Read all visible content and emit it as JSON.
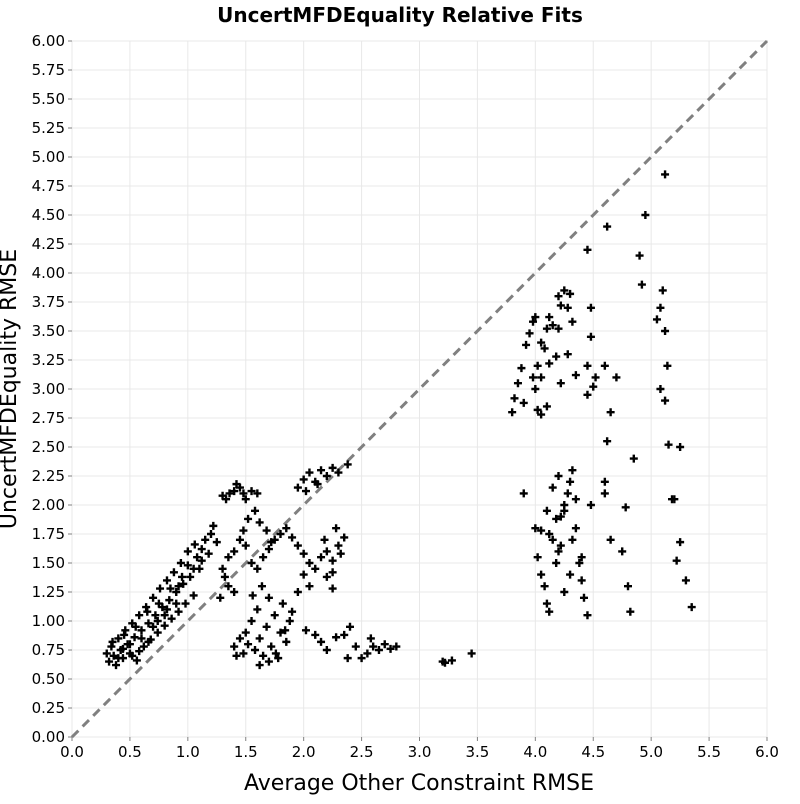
{
  "chart_data": {
    "type": "scatter",
    "title": "UncertMFDEquality Relative Fits",
    "xlabel": "Average Other Constraint RMSE",
    "ylabel": "UncertMFDEquality RMSE",
    "xlim": [
      0,
      6
    ],
    "ylim": [
      0,
      6
    ],
    "x_ticks": [
      "0.0",
      "0.5",
      "1.0",
      "1.5",
      "2.0",
      "2.5",
      "3.0",
      "3.5",
      "4.0",
      "4.5",
      "5.0",
      "5.5",
      "6.0"
    ],
    "y_ticks": [
      "0.00",
      "0.25",
      "0.50",
      "0.75",
      "1.00",
      "1.25",
      "1.50",
      "1.75",
      "2.00",
      "2.25",
      "2.50",
      "2.75",
      "3.00",
      "3.25",
      "3.50",
      "3.75",
      "4.00",
      "4.25",
      "4.50",
      "4.75",
      "5.00",
      "5.25",
      "5.50",
      "5.75",
      "6.00"
    ],
    "grid": true,
    "reference_line": {
      "style": "dashed",
      "color": "#808080",
      "from": [
        0,
        0
      ],
      "to": [
        6,
        6
      ]
    },
    "marker": {
      "shape": "plus",
      "color": "#000000"
    },
    "series": [
      {
        "points": [
          [
            0.3,
            0.72
          ],
          [
            0.32,
            0.65
          ],
          [
            0.34,
            0.78
          ],
          [
            0.36,
            0.7
          ],
          [
            0.38,
            0.62
          ],
          [
            0.4,
            0.85
          ],
          [
            0.42,
            0.75
          ],
          [
            0.44,
            0.68
          ],
          [
            0.46,
            0.92
          ],
          [
            0.48,
            0.8
          ],
          [
            0.5,
            0.72
          ],
          [
            0.52,
            0.98
          ],
          [
            0.54,
            0.86
          ],
          [
            0.56,
            0.66
          ],
          [
            0.58,
            1.05
          ],
          [
            0.6,
            0.92
          ],
          [
            0.62,
            0.78
          ],
          [
            0.64,
            1.12
          ],
          [
            0.66,
            0.98
          ],
          [
            0.68,
            0.84
          ],
          [
            0.7,
            1.2
          ],
          [
            0.72,
            1.05
          ],
          [
            0.74,
            0.9
          ],
          [
            0.76,
            1.28
          ],
          [
            0.78,
            1.12
          ],
          [
            0.8,
            0.96
          ],
          [
            0.82,
            1.35
          ],
          [
            0.84,
            1.18
          ],
          [
            0.86,
            1.02
          ],
          [
            0.88,
            1.42
          ],
          [
            0.9,
            1.25
          ],
          [
            0.92,
            1.08
          ],
          [
            0.94,
            1.5
          ],
          [
            0.96,
            1.32
          ],
          [
            0.98,
            1.15
          ],
          [
            1.0,
            1.48
          ],
          [
            1.02,
            1.38
          ],
          [
            1.05,
            1.22
          ],
          [
            1.08,
            1.55
          ],
          [
            1.1,
            1.45
          ],
          [
            1.12,
            1.62
          ],
          [
            1.15,
            1.7
          ],
          [
            1.18,
            1.58
          ],
          [
            1.2,
            1.75
          ],
          [
            1.22,
            1.82
          ],
          [
            1.25,
            1.68
          ],
          [
            0.35,
            0.82
          ],
          [
            0.45,
            0.88
          ],
          [
            0.55,
            0.95
          ],
          [
            0.65,
            1.08
          ],
          [
            0.75,
            1.15
          ],
          [
            0.85,
            1.28
          ],
          [
            0.95,
            1.38
          ],
          [
            1.05,
            1.45
          ],
          [
            0.4,
            0.68
          ],
          [
            0.5,
            0.8
          ],
          [
            0.6,
            0.85
          ],
          [
            0.7,
            0.95
          ],
          [
            0.8,
            1.05
          ],
          [
            0.9,
            1.15
          ],
          [
            0.58,
            0.74
          ],
          [
            0.66,
            0.82
          ],
          [
            0.74,
            1.0
          ],
          [
            0.82,
            1.1
          ],
          [
            0.92,
            1.3
          ],
          [
            1.0,
            1.6
          ],
          [
            1.06,
            1.66
          ],
          [
            1.12,
            1.52
          ],
          [
            0.44,
            0.76
          ],
          [
            0.52,
            0.7
          ],
          [
            1.3,
            2.08
          ],
          [
            1.33,
            2.05
          ],
          [
            1.36,
            2.1
          ],
          [
            1.4,
            2.12
          ],
          [
            1.42,
            2.18
          ],
          [
            1.45,
            2.15
          ],
          [
            1.48,
            2.1
          ],
          [
            1.5,
            2.05
          ],
          [
            1.55,
            2.12
          ],
          [
            1.6,
            2.1
          ],
          [
            1.3,
            1.45
          ],
          [
            1.35,
            1.55
          ],
          [
            1.4,
            1.6
          ],
          [
            1.45,
            1.7
          ],
          [
            1.5,
            1.65
          ],
          [
            1.55,
            1.5
          ],
          [
            1.6,
            1.45
          ],
          [
            1.65,
            1.55
          ],
          [
            1.7,
            1.62
          ],
          [
            1.75,
            1.7
          ],
          [
            1.8,
            1.75
          ],
          [
            1.85,
            1.8
          ],
          [
            1.9,
            1.72
          ],
          [
            1.95,
            1.65
          ],
          [
            2.0,
            1.58
          ],
          [
            2.05,
            1.5
          ],
          [
            2.1,
            1.45
          ],
          [
            2.15,
            1.55
          ],
          [
            2.2,
            1.6
          ],
          [
            2.25,
            1.52
          ],
          [
            1.35,
            1.3
          ],
          [
            1.4,
            1.25
          ],
          [
            1.28,
            1.2
          ],
          [
            1.32,
            1.38
          ],
          [
            1.48,
            1.78
          ],
          [
            1.52,
            1.88
          ],
          [
            1.58,
            1.95
          ],
          [
            1.62,
            1.85
          ],
          [
            1.68,
            1.78
          ],
          [
            1.72,
            1.68
          ],
          [
            1.5,
            0.9
          ],
          [
            1.52,
            0.8
          ],
          [
            1.55,
            1.0
          ],
          [
            1.58,
            0.75
          ],
          [
            1.6,
            1.1
          ],
          [
            1.62,
            0.85
          ],
          [
            1.65,
            0.7
          ],
          [
            1.68,
            0.95
          ],
          [
            1.7,
            1.2
          ],
          [
            1.72,
            0.78
          ],
          [
            1.75,
            1.05
          ],
          [
            1.78,
            0.68
          ],
          [
            1.8,
            0.9
          ],
          [
            1.82,
            1.15
          ],
          [
            1.85,
            0.82
          ],
          [
            1.88,
            1.0
          ],
          [
            1.4,
            0.78
          ],
          [
            1.42,
            0.7
          ],
          [
            1.45,
            0.85
          ],
          [
            1.48,
            0.72
          ],
          [
            1.62,
            0.62
          ],
          [
            1.7,
            0.65
          ],
          [
            1.76,
            0.72
          ],
          [
            1.84,
            0.92
          ],
          [
            1.9,
            1.08
          ],
          [
            1.95,
            1.25
          ],
          [
            2.0,
            1.4
          ],
          [
            2.05,
            1.3
          ],
          [
            1.56,
            1.22
          ],
          [
            1.64,
            1.3
          ],
          [
            1.95,
            2.15
          ],
          [
            2.0,
            2.22
          ],
          [
            2.05,
            2.28
          ],
          [
            2.1,
            2.2
          ],
          [
            2.15,
            2.3
          ],
          [
            2.2,
            2.25
          ],
          [
            2.25,
            2.32
          ],
          [
            2.3,
            2.28
          ],
          [
            2.02,
            2.12
          ],
          [
            2.12,
            2.18
          ],
          [
            2.2,
            1.38
          ],
          [
            2.25,
            1.42
          ],
          [
            2.3,
            1.65
          ],
          [
            2.35,
            1.72
          ],
          [
            2.4,
            0.95
          ],
          [
            2.25,
            1.28
          ],
          [
            2.18,
            1.7
          ],
          [
            2.28,
            1.8
          ],
          [
            2.38,
            2.35
          ],
          [
            2.32,
            1.58
          ],
          [
            2.45,
            0.78
          ],
          [
            2.5,
            0.68
          ],
          [
            2.55,
            0.72
          ],
          [
            2.6,
            0.78
          ],
          [
            2.65,
            0.75
          ],
          [
            2.7,
            0.8
          ],
          [
            2.75,
            0.76
          ],
          [
            2.8,
            0.78
          ],
          [
            2.35,
            0.88
          ],
          [
            2.58,
            0.85
          ],
          [
            2.1,
            0.88
          ],
          [
            2.15,
            0.82
          ],
          [
            2.2,
            0.75
          ],
          [
            2.28,
            0.86
          ],
          [
            2.02,
            0.92
          ],
          [
            3.2,
            0.65
          ],
          [
            3.22,
            0.64
          ],
          [
            3.28,
            0.66
          ],
          [
            3.45,
            0.72
          ],
          [
            2.38,
            0.68
          ],
          [
            3.8,
            2.8
          ],
          [
            3.82,
            2.92
          ],
          [
            3.85,
            3.05
          ],
          [
            3.88,
            3.18
          ],
          [
            3.9,
            2.88
          ],
          [
            3.92,
            3.38
          ],
          [
            3.95,
            3.48
          ],
          [
            3.98,
            3.58
          ],
          [
            4.0,
            3.62
          ],
          [
            4.02,
            3.2
          ],
          [
            4.05,
            3.1
          ],
          [
            4.08,
            3.35
          ],
          [
            4.1,
            3.52
          ],
          [
            4.12,
            3.62
          ],
          [
            4.15,
            3.55
          ],
          [
            4.18,
            3.28
          ],
          [
            4.2,
            3.8
          ],
          [
            4.22,
            3.72
          ],
          [
            4.25,
            3.85
          ],
          [
            4.28,
            3.7
          ],
          [
            4.3,
            3.82
          ],
          [
            4.32,
            3.58
          ],
          [
            4.0,
            3.0
          ],
          [
            4.02,
            2.82
          ],
          [
            4.05,
            2.78
          ],
          [
            4.1,
            2.85
          ],
          [
            3.98,
            3.1
          ],
          [
            4.05,
            3.4
          ],
          [
            4.12,
            3.22
          ],
          [
            4.22,
            3.05
          ],
          [
            4.35,
            3.12
          ],
          [
            4.45,
            3.2
          ],
          [
            4.48,
            3.45
          ],
          [
            4.48,
            3.7
          ],
          [
            4.52,
            3.1
          ],
          [
            4.45,
            2.95
          ],
          [
            4.6,
            3.2
          ],
          [
            4.65,
            2.8
          ],
          [
            4.7,
            3.1
          ],
          [
            4.62,
            4.4
          ],
          [
            4.45,
            4.2
          ],
          [
            4.5,
            3.02
          ],
          [
            4.2,
            3.52
          ],
          [
            4.28,
            3.3
          ],
          [
            3.9,
            2.1
          ],
          [
            4.0,
            1.8
          ],
          [
            4.02,
            1.55
          ],
          [
            4.05,
            1.4
          ],
          [
            4.08,
            1.3
          ],
          [
            4.1,
            1.15
          ],
          [
            4.12,
            1.75
          ],
          [
            4.15,
            1.7
          ],
          [
            4.18,
            1.5
          ],
          [
            4.2,
            1.6
          ],
          [
            4.22,
            1.9
          ],
          [
            4.25,
            2.0
          ],
          [
            4.28,
            2.1
          ],
          [
            4.3,
            2.2
          ],
          [
            4.32,
            2.3
          ],
          [
            4.35,
            1.8
          ],
          [
            4.38,
            1.5
          ],
          [
            4.4,
            1.35
          ],
          [
            4.42,
            1.2
          ],
          [
            4.45,
            1.05
          ],
          [
            4.1,
            1.95
          ],
          [
            4.15,
            2.15
          ],
          [
            4.2,
            2.25
          ],
          [
            4.25,
            1.25
          ],
          [
            4.3,
            1.4
          ],
          [
            4.22,
            1.65
          ],
          [
            4.35,
            2.05
          ],
          [
            4.05,
            1.78
          ],
          [
            4.12,
            1.08
          ],
          [
            4.18,
            1.88
          ],
          [
            4.25,
            1.95
          ],
          [
            4.32,
            1.7
          ],
          [
            4.4,
            1.55
          ],
          [
            4.48,
            2.0
          ],
          [
            4.6,
            2.1
          ],
          [
            4.62,
            2.55
          ],
          [
            4.65,
            1.7
          ],
          [
            4.6,
            2.2
          ],
          [
            4.75,
            1.6
          ],
          [
            4.78,
            1.98
          ],
          [
            4.8,
            1.3
          ],
          [
            4.82,
            1.08
          ],
          [
            4.85,
            2.4
          ],
          [
            4.9,
            4.15
          ],
          [
            4.92,
            3.9
          ],
          [
            4.95,
            4.5
          ],
          [
            5.05,
            3.6
          ],
          [
            5.08,
            3.7
          ],
          [
            5.1,
            3.85
          ],
          [
            5.12,
            3.5
          ],
          [
            5.08,
            3.0
          ],
          [
            5.12,
            2.9
          ],
          [
            5.15,
            2.52
          ],
          [
            5.18,
            2.05
          ],
          [
            5.2,
            2.05
          ],
          [
            5.22,
            1.52
          ],
          [
            5.25,
            2.5
          ],
          [
            5.25,
            1.68
          ],
          [
            5.3,
            1.35
          ],
          [
            5.35,
            1.12
          ],
          [
            5.14,
            3.2
          ],
          [
            5.12,
            4.85
          ]
        ]
      }
    ]
  }
}
